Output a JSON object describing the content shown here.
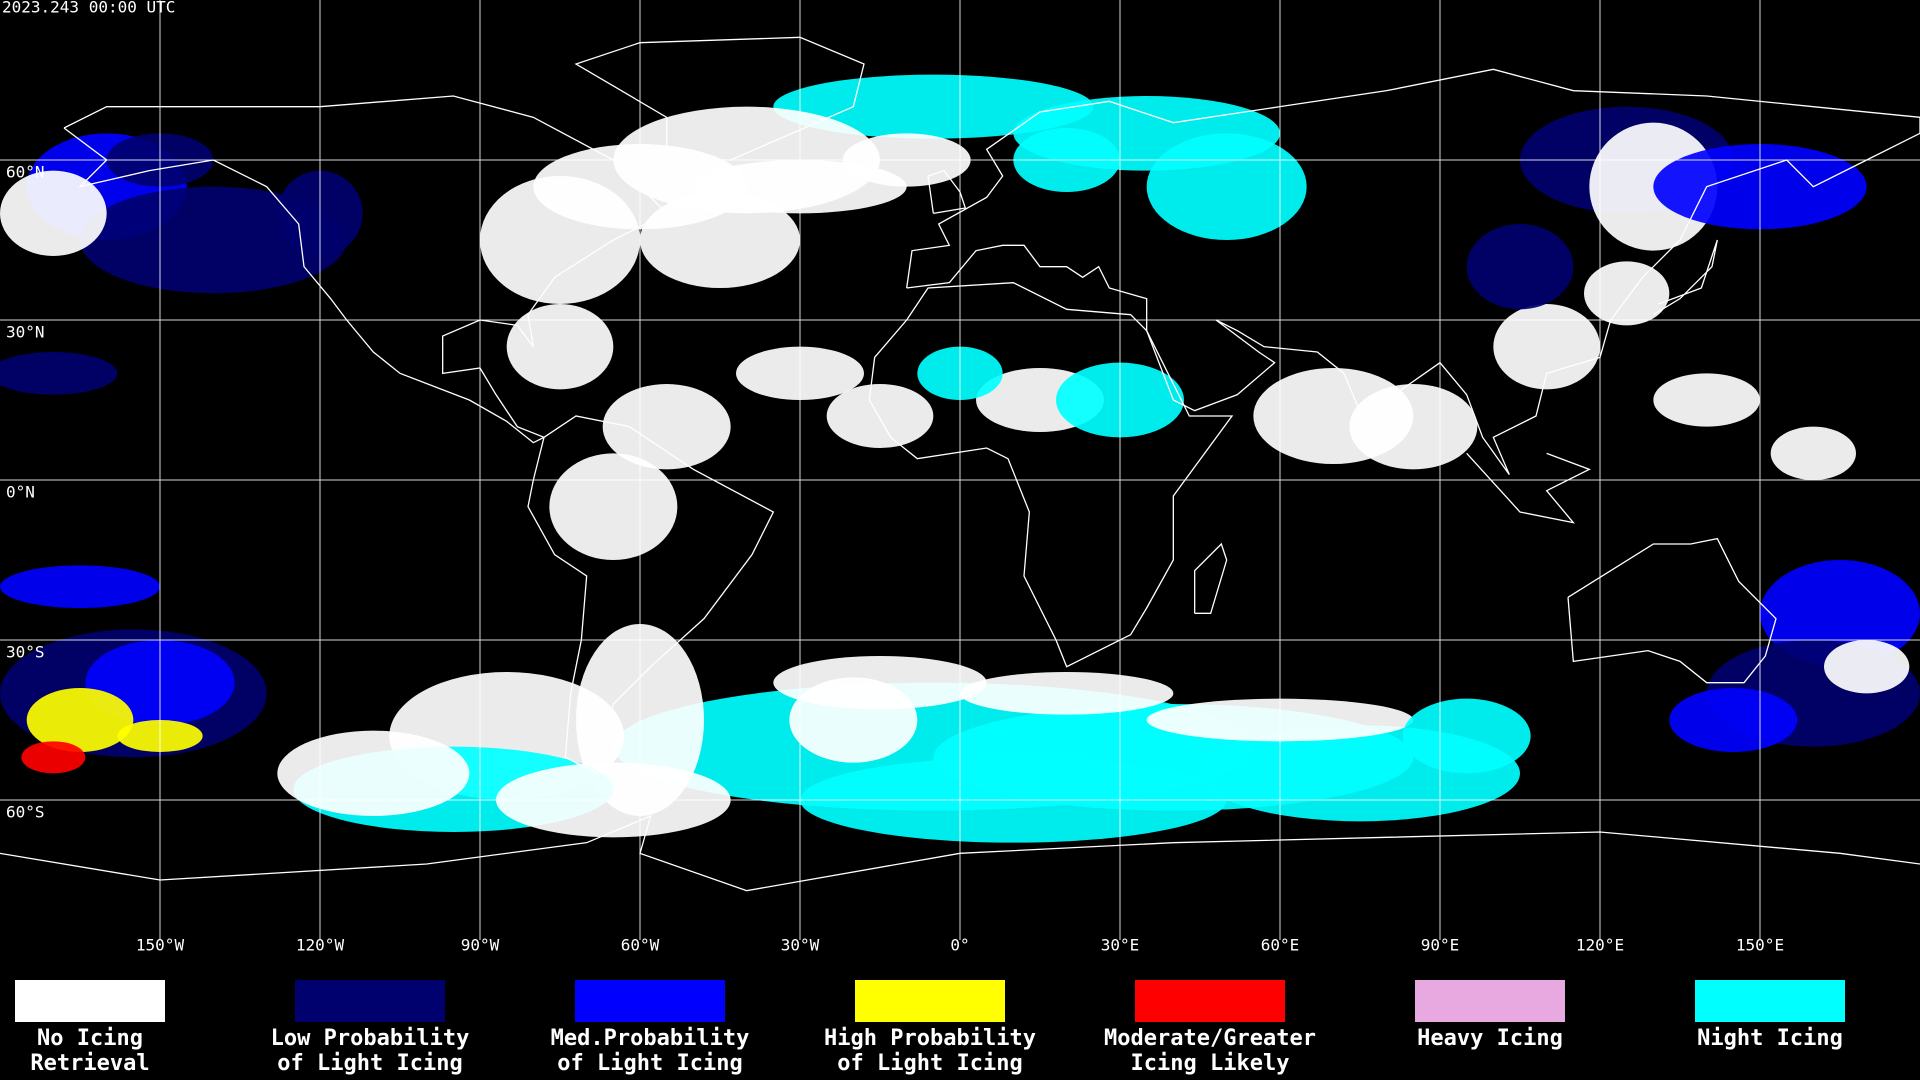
{
  "header": {
    "title": "2023.243 00:00 UTC"
  },
  "map": {
    "lat_labels": [
      "60°N",
      "30°N",
      "0°N",
      "30°S",
      "60°S"
    ],
    "lon_labels": [
      "150°W",
      "120°W",
      "90°W",
      "60°W",
      "30°W",
      "0°",
      "30°E",
      "60°E",
      "90°E",
      "120°E",
      "150°E"
    ]
  },
  "legend": {
    "items": [
      {
        "label": [
          "No Icing",
          "Retrieval"
        ],
        "color": "#ffffff"
      },
      {
        "label": [
          "Low Probability",
          "of Light Icing"
        ],
        "color": "#00006e"
      },
      {
        "label": [
          "Med.Probability",
          "of Light Icing"
        ],
        "color": "#0000ff"
      },
      {
        "label": [
          "High Probability",
          "of Light Icing"
        ],
        "color": "#ffff00"
      },
      {
        "label": [
          "Moderate/Greater",
          "Icing Likely"
        ],
        "color": "#ff0000"
      },
      {
        "label": [
          "Heavy Icing"
        ],
        "color": "#e8a8e0"
      },
      {
        "label": [
          "Night Icing"
        ],
        "color": "#00ffff"
      }
    ]
  }
}
